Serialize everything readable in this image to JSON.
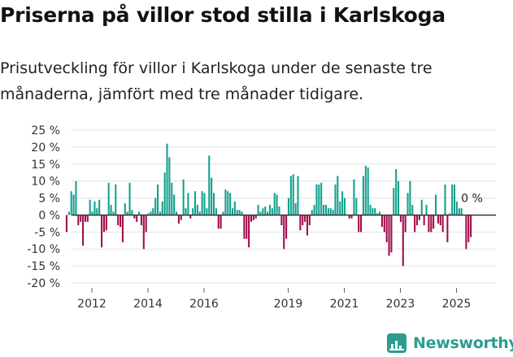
{
  "page": {
    "title": "Priserna på villor stod stilla i Karlskoga",
    "subtitle": "Prisutveckling för villor i Karlskoga under de senaste tre månaderna, jämfört med tre månader tidigare."
  },
  "brand": {
    "name": "Newsworthy",
    "icon": "newsworthy-logo-icon",
    "color": "#2a9d8f"
  },
  "chart_data": {
    "type": "bar",
    "title": "Priserna på villor stod stilla i Karlskoga",
    "subtitle": "Prisutveckling för villor i Karlskoga under de senaste tre månaderna, jämfört med tre månader tidigare.",
    "xlabel": "",
    "ylabel": "",
    "ylim": [
      -20,
      25
    ],
    "yticks": [
      25,
      20,
      15,
      10,
      5,
      0,
      -5,
      -10,
      -15,
      -20
    ],
    "ytick_labels": [
      "25 %",
      "20 %",
      "15 %",
      "10 %",
      "5 %",
      "0 %",
      "-5 %",
      "-10 %",
      "-15 %",
      "-20 %"
    ],
    "xtick_labels": [
      "2012",
      "2014",
      "2016",
      "2019",
      "2021",
      "2023",
      "2025"
    ],
    "xtick_positions": [
      2012,
      2014,
      2016,
      2019,
      2021,
      2023,
      2025
    ],
    "x_start": 2011.1,
    "bar_step_years": 0.0833,
    "grid": true,
    "positive_color": "#12a18e",
    "negative_color": "#a10c4a",
    "annotation": {
      "text": "0 %",
      "value": 0
    },
    "values": [
      -5,
      1,
      7,
      6,
      10,
      -3,
      -2,
      -9,
      -2,
      -2,
      4.5,
      1,
      4,
      2,
      4.5,
      -9.5,
      -5,
      -4.5,
      9.5,
      3,
      1,
      9,
      -3,
      -3.5,
      -8,
      3.5,
      1,
      9.5,
      1.5,
      -1,
      -2,
      1,
      -3,
      -10,
      -5,
      0.5,
      1,
      2,
      5,
      9,
      1,
      4,
      12.5,
      21,
      17,
      9.5,
      6,
      1,
      -2.5,
      -1.5,
      10.5,
      2,
      6.5,
      -1,
      2,
      7,
      3,
      1,
      7,
      6.5,
      2,
      17.5,
      11,
      6.5,
      2,
      -4,
      -4,
      1,
      7.5,
      7,
      6.5,
      2,
      4,
      1.5,
      1.5,
      1,
      -7,
      -7,
      -9.5,
      -2,
      -1.5,
      -1,
      3,
      1,
      2,
      2.5,
      1,
      3,
      2,
      6.5,
      6,
      2.5,
      -3,
      -10,
      -7,
      5,
      11.5,
      12,
      3.5,
      11.5,
      -4.5,
      -3,
      -2,
      -6,
      -3,
      1.5,
      3,
      9,
      9,
      9.5,
      3,
      3,
      2,
      2,
      1.5,
      9,
      11.5,
      4,
      7,
      5,
      0,
      -1,
      -1,
      10.5,
      5,
      -5,
      -5,
      11.5,
      14.5,
      14,
      3,
      2,
      2,
      0.5,
      1,
      -3.5,
      -5,
      -8,
      -12,
      -11,
      8,
      13.5,
      10,
      -2,
      -15,
      -5,
      6.5,
      10,
      3,
      -5,
      -3,
      -1.5,
      4.5,
      -3,
      3,
      -5,
      -5,
      -4,
      6,
      -2.5,
      -3,
      -5,
      9,
      -8,
      0.5,
      9,
      9,
      4,
      2,
      2,
      0,
      -10,
      -8,
      -6.5
    ]
  }
}
